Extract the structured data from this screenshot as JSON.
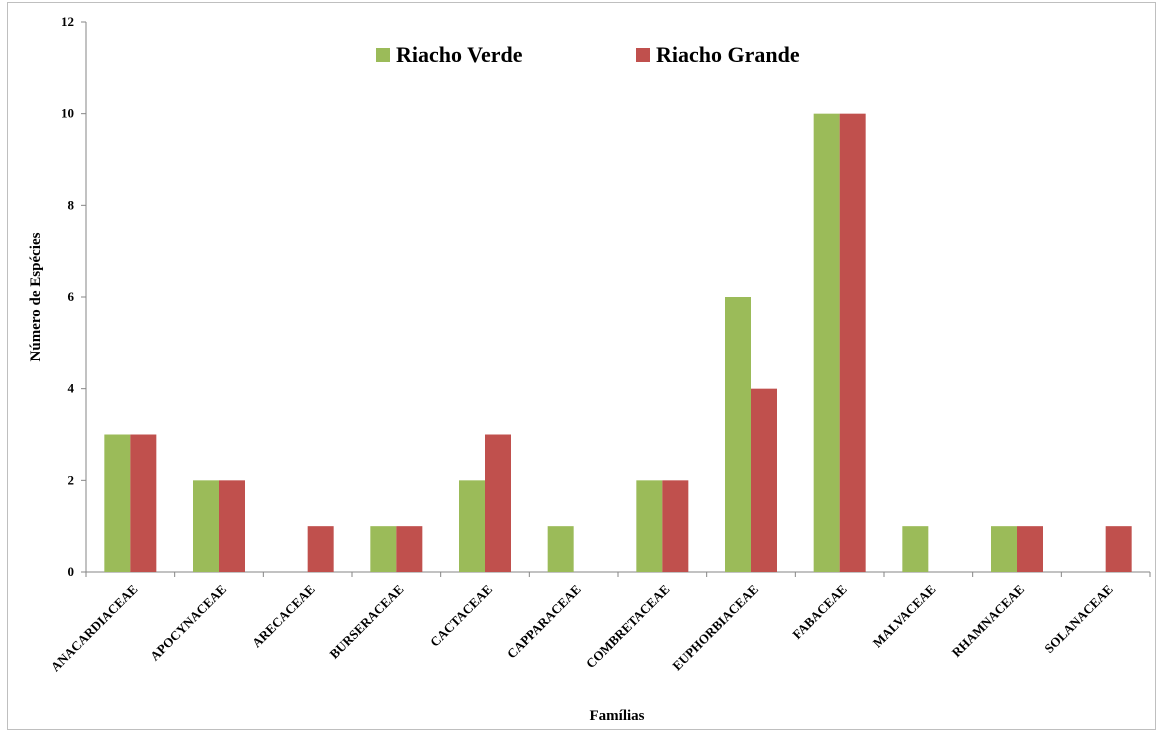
{
  "chart_data": {
    "type": "bar",
    "title": "",
    "xlabel": "Famílias",
    "ylabel": "Número de Espécies",
    "ylim": [
      0,
      12
    ],
    "yticks": [
      0,
      2,
      4,
      6,
      8,
      10,
      12
    ],
    "grid": false,
    "legend_position": "top-center",
    "categories": [
      "ANACARDIACEAE",
      "APOCYNACEAE",
      "ARECACEAE",
      "BURSERACEAE",
      "CACTACEAE",
      "CAPPARACEAE",
      "COMBRETACEAE",
      "EUPHORBIACEAE",
      "FABACEAE",
      "MALVACEAE",
      "RHAMNACEAE",
      "SOLANACEAE"
    ],
    "series": [
      {
        "name": "Riacho Verde",
        "color": "#9BBB59",
        "values": [
          3,
          2,
          0,
          1,
          2,
          1,
          2,
          6,
          10,
          1,
          1,
          0
        ]
      },
      {
        "name": "Riacho Grande",
        "color": "#C0504D",
        "values": [
          3,
          2,
          1,
          1,
          3,
          0,
          2,
          4,
          10,
          0,
          1,
          1
        ]
      }
    ]
  }
}
